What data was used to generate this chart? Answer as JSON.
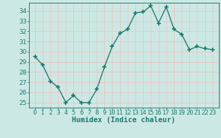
{
  "title": "",
  "xlabel": "Humidex (Indice chaleur)",
  "ylabel": "",
  "x": [
    0,
    1,
    2,
    3,
    4,
    5,
    6,
    7,
    8,
    9,
    10,
    11,
    12,
    13,
    14,
    15,
    16,
    17,
    18,
    19,
    20,
    21,
    22,
    23
  ],
  "y": [
    29.5,
    28.7,
    27.1,
    26.5,
    25.0,
    25.7,
    25.0,
    25.0,
    26.3,
    28.5,
    30.5,
    31.8,
    32.2,
    33.8,
    33.9,
    34.5,
    32.8,
    34.4,
    32.2,
    31.7,
    30.2,
    30.5,
    30.3,
    30.2
  ],
  "line_color": "#1a7a6e",
  "marker": "+",
  "marker_size": 4.0,
  "line_width": 1.0,
  "bg_color": "#cce8e4",
  "grid_color": "#e8c8c8",
  "ylim": [
    24.5,
    34.8
  ],
  "yticks": [
    25,
    26,
    27,
    28,
    29,
    30,
    31,
    32,
    33,
    34
  ],
  "xticks": [
    0,
    1,
    2,
    3,
    4,
    5,
    6,
    7,
    8,
    9,
    10,
    11,
    12,
    13,
    14,
    15,
    16,
    17,
    18,
    19,
    20,
    21,
    22,
    23
  ],
  "tick_fontsize": 6.5,
  "xlabel_fontsize": 7.5,
  "tick_color": "#1a7a6e",
  "label_color": "#1a7a6e"
}
